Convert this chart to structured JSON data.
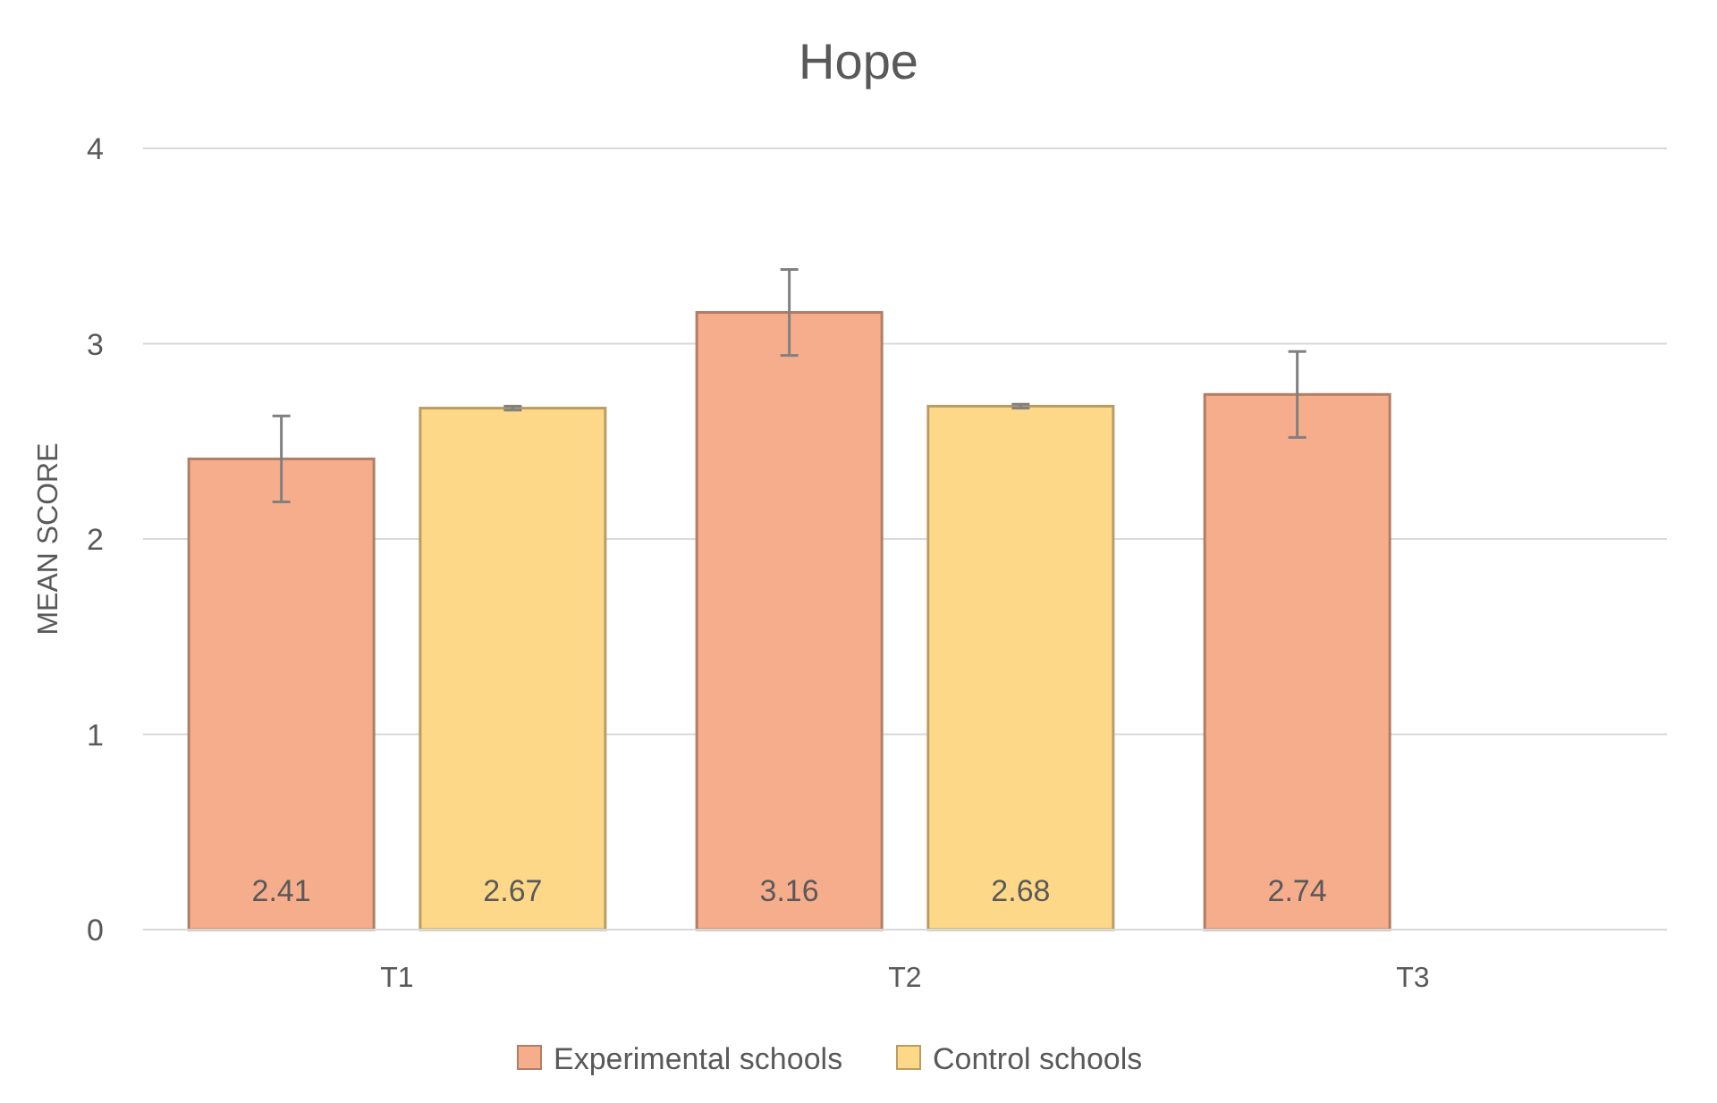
{
  "chart_data": {
    "type": "bar",
    "title": "Hope",
    "ylabel": "MEAN SCORE",
    "categories": [
      "T1",
      "T2",
      "T3"
    ],
    "series": [
      {
        "name": "Experimental schools",
        "color": "#f6ad8c",
        "values": [
          2.41,
          3.16,
          2.74
        ],
        "errors": [
          0.22,
          0.22,
          0.22
        ]
      },
      {
        "name": "Control schools",
        "color": "#fdd888",
        "values": [
          2.67,
          2.68,
          null
        ],
        "errors": [
          0.01,
          0.01,
          null
        ]
      }
    ],
    "ylim": [
      0,
      4
    ],
    "yticks": [
      0,
      1,
      2,
      3,
      4
    ],
    "grid": "y",
    "legend": "bottom",
    "data_labels": true
  }
}
